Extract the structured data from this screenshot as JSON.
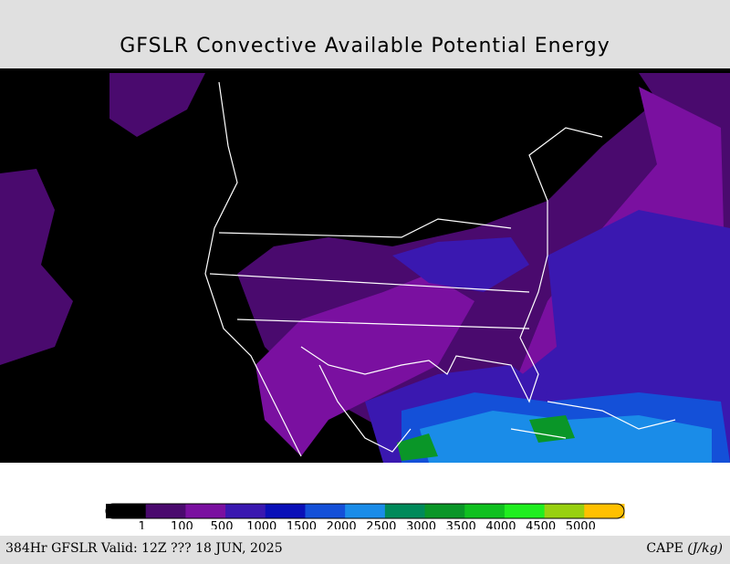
{
  "header": {
    "title": "GFSLR Convective Available Potential Energy"
  },
  "legend": {
    "levels": [
      1,
      100,
      500,
      1000,
      1500,
      2000,
      2500,
      3000,
      3500,
      4000,
      4500,
      5000
    ],
    "colors": [
      "#000000",
      "#4a0a6e",
      "#7a10a0",
      "#3a18b0",
      "#0a10b8",
      "#1450d8",
      "#1a8ce8",
      "#008a5a",
      "#0a9628",
      "#10c020",
      "#20ee20",
      "#98d010",
      "#ffc000"
    ]
  },
  "footer": {
    "left": "384Hr GFSLR Valid: 12Z ??? 18 JUN, 2025",
    "unit": "CAPE",
    "unit_paren": "(J/kg)"
  }
}
